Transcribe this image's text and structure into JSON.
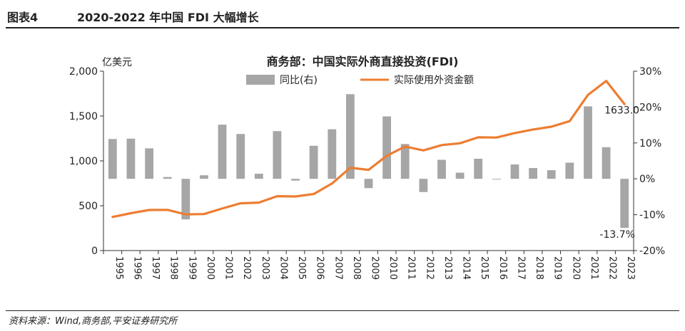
{
  "header": {
    "figure_label": "图表4",
    "figure_title": "2020-2022 年中国 FDI 大幅增长"
  },
  "footer": {
    "source": "资料来源：Wind,商务部,平安证券研究所"
  },
  "colors": {
    "bar": "#a6a6a6",
    "line": "#ed7d31",
    "axis": "#333333",
    "text": "#222222"
  },
  "chart_data": {
    "type": "bar+line",
    "title": "商务部：中国实际外商直接投资(FDI)",
    "left_axis_unit": "亿美元",
    "left_axis": {
      "min": 0,
      "max": 2000,
      "ticks": [
        "0",
        "500",
        "1,000",
        "1,500",
        "2,000"
      ],
      "tick_values": [
        0,
        500,
        1000,
        1500,
        2000
      ]
    },
    "right_axis": {
      "min": -20,
      "max": 30,
      "ticks": [
        "-20%",
        "-10%",
        "0%",
        "10%",
        "20%",
        "30%"
      ],
      "tick_values": [
        -20,
        -10,
        0,
        10,
        20,
        30
      ]
    },
    "categories": [
      "1995",
      "1996",
      "1997",
      "1998",
      "1999",
      "2000",
      "2001",
      "2002",
      "2003",
      "2004",
      "2005",
      "2006",
      "2007",
      "2008",
      "2009",
      "2010",
      "2011",
      "2012",
      "2013",
      "2014",
      "2015",
      "2016",
      "2017",
      "2018",
      "2019",
      "2020",
      "2021",
      "2022",
      "2023"
    ],
    "series": [
      {
        "name": "同比(右)",
        "type": "bar",
        "axis": "right",
        "values": [
          11.1,
          11.2,
          8.5,
          0.5,
          -11.3,
          1.0,
          15.1,
          12.5,
          1.4,
          13.3,
          -0.5,
          9.2,
          13.8,
          23.6,
          -2.6,
          17.4,
          9.7,
          -3.7,
          5.3,
          1.7,
          5.6,
          -0.2,
          4.0,
          3.0,
          2.4,
          4.5,
          20.2,
          8.8,
          -13.7
        ]
      },
      {
        "name": "实际使用外资金额",
        "type": "line",
        "axis": "left",
        "values": [
          375,
          417,
          452,
          454,
          403,
          407,
          469,
          527,
          535,
          606,
          603,
          630,
          748,
          924,
          900,
          1057,
          1160,
          1117,
          1176,
          1196,
          1263,
          1260,
          1310,
          1350,
          1381,
          1443,
          1735,
          1891,
          1633
        ]
      }
    ],
    "annotations": [
      {
        "text": "1633.0",
        "target": "line",
        "index": 27
      },
      {
        "text": "-13.7%",
        "target": "bar",
        "index": 28
      }
    ],
    "legend": "top-center",
    "grid": false
  }
}
